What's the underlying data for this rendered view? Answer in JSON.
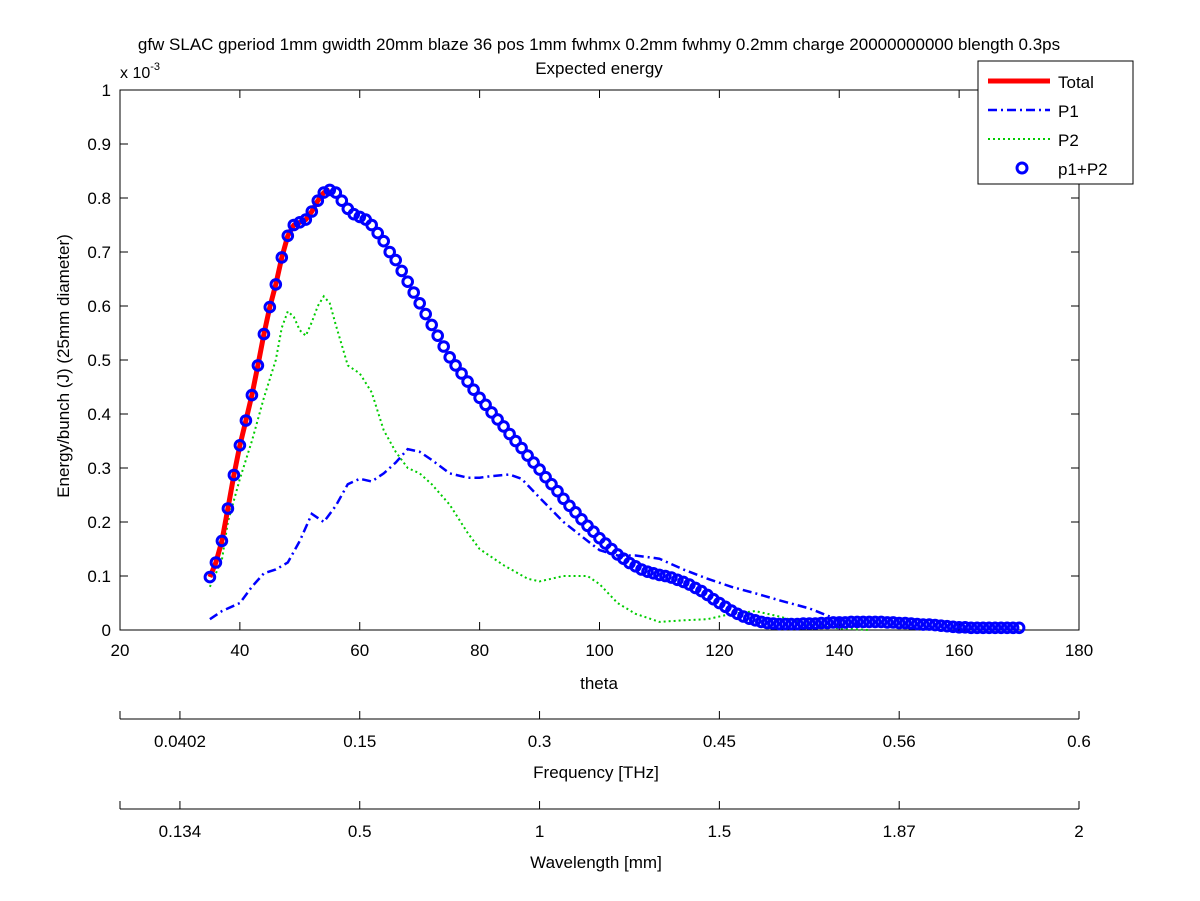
{
  "chart_data": {
    "type": "line",
    "title": "gfw SLAC gperiod 1mm gwidth 20mm blaze 36 pos 1mm fwhmx 0.2mm fwhmy 0.2mm charge 20000000000 blength 0.3ps",
    "subtitle": "Expected energy",
    "xlabel": "theta",
    "ylabel": "Energy/bunch (J) (25mm diameter)",
    "y_multiplier_label": "x 10",
    "y_multiplier_exponent": "-3",
    "xlim": [
      20,
      180
    ],
    "ylim": [
      0,
      1
    ],
    "x_ticks": [
      "20",
      "40",
      "60",
      "80",
      "100",
      "120",
      "140",
      "160",
      "180"
    ],
    "y_ticks": [
      "0",
      "0.1",
      "0.2",
      "0.3",
      "0.4",
      "0.5",
      "0.6",
      "0.7",
      "0.8",
      "0.9",
      "1"
    ],
    "grid": false,
    "legend_position": "top-right",
    "series": [
      {
        "name": "Total",
        "color": "#ff0000",
        "style": "solid",
        "x": [
          35,
          36,
          37,
          38,
          39,
          40,
          41,
          42,
          43,
          44,
          45,
          46,
          47,
          48,
          49,
          50,
          51,
          52,
          53,
          54,
          55
        ],
        "values": [
          0.098,
          0.125,
          0.165,
          0.225,
          0.287,
          0.342,
          0.388,
          0.435,
          0.49,
          0.548,
          0.598,
          0.64,
          0.69,
          0.73,
          0.75,
          0.755,
          0.76,
          0.775,
          0.795,
          0.81,
          0.815
        ]
      },
      {
        "name": "P1",
        "color": "#0000ff",
        "style": "dashdot",
        "x": [
          35,
          37,
          40,
          42,
          44,
          46,
          48,
          50,
          52,
          54,
          56,
          58,
          60,
          62,
          64,
          66,
          68,
          70,
          72,
          75,
          78,
          80,
          82,
          85,
          87,
          90,
          94,
          98,
          100,
          103,
          106,
          110,
          114,
          118,
          122,
          126,
          130,
          135,
          140,
          145
        ],
        "values": [
          0.02,
          0.035,
          0.05,
          0.08,
          0.105,
          0.112,
          0.125,
          0.165,
          0.215,
          0.2,
          0.23,
          0.27,
          0.28,
          0.275,
          0.29,
          0.31,
          0.335,
          0.33,
          0.315,
          0.29,
          0.282,
          0.282,
          0.285,
          0.288,
          0.28,
          0.245,
          0.2,
          0.165,
          0.148,
          0.138,
          0.138,
          0.132,
          0.112,
          0.095,
          0.08,
          0.068,
          0.055,
          0.04,
          0.018,
          0.005
        ]
      },
      {
        "name": "P2",
        "color": "#00cc00",
        "style": "dotted",
        "x": [
          35,
          37,
          38,
          40,
          42,
          44,
          46,
          47,
          48,
          49,
          50,
          51,
          52,
          53,
          54,
          55,
          56,
          58,
          60,
          62,
          64,
          66,
          68,
          70,
          72,
          75,
          78,
          80,
          84,
          88,
          90,
          94,
          98,
          100,
          103,
          106,
          110,
          114,
          118,
          122,
          126,
          130,
          135,
          140,
          145
        ],
        "values": [
          0.08,
          0.13,
          0.2,
          0.28,
          0.35,
          0.43,
          0.5,
          0.56,
          0.59,
          0.58,
          0.555,
          0.545,
          0.57,
          0.6,
          0.618,
          0.605,
          0.565,
          0.49,
          0.475,
          0.44,
          0.37,
          0.33,
          0.3,
          0.29,
          0.27,
          0.232,
          0.18,
          0.15,
          0.12,
          0.095,
          0.09,
          0.1,
          0.1,
          0.085,
          0.05,
          0.03,
          0.015,
          0.018,
          0.02,
          0.03,
          0.035,
          0.025,
          0.01,
          0.003,
          0.0
        ]
      },
      {
        "name": "p1+P2",
        "color": "#0000ff",
        "style": "circle-markers",
        "x": [
          35,
          36,
          37,
          38,
          39,
          40,
          41,
          42,
          43,
          44,
          45,
          46,
          47,
          48,
          49,
          50,
          51,
          52,
          53,
          54,
          55,
          56,
          57,
          58,
          59,
          60,
          61,
          62,
          63,
          64,
          65,
          66,
          67,
          68,
          69,
          70,
          71,
          72,
          73,
          74,
          75,
          76,
          77,
          78,
          79,
          80,
          81,
          82,
          83,
          84,
          85,
          86,
          87,
          88,
          89,
          90,
          91,
          92,
          93,
          94,
          95,
          96,
          97,
          98,
          99,
          100,
          101,
          102,
          103,
          104,
          105,
          106,
          107,
          108,
          109,
          110,
          111,
          112,
          113,
          114,
          115,
          116,
          117,
          118,
          119,
          120,
          121,
          122,
          123,
          124,
          125,
          126,
          127,
          128,
          129,
          130,
          131,
          132,
          133,
          134,
          135,
          136,
          137,
          138,
          139,
          140,
          141,
          142,
          143,
          144,
          145,
          146,
          147,
          148,
          149,
          150,
          151,
          152,
          153,
          154,
          155,
          156,
          157,
          158,
          159,
          160,
          161,
          162,
          163,
          164,
          165,
          166,
          167,
          168,
          169,
          170
        ],
        "values": [
          0.098,
          0.125,
          0.165,
          0.225,
          0.287,
          0.342,
          0.388,
          0.435,
          0.49,
          0.548,
          0.598,
          0.64,
          0.69,
          0.73,
          0.75,
          0.755,
          0.76,
          0.775,
          0.795,
          0.81,
          0.815,
          0.81,
          0.795,
          0.78,
          0.77,
          0.765,
          0.76,
          0.75,
          0.735,
          0.72,
          0.7,
          0.685,
          0.665,
          0.645,
          0.625,
          0.605,
          0.585,
          0.565,
          0.545,
          0.525,
          0.505,
          0.49,
          0.475,
          0.46,
          0.445,
          0.43,
          0.417,
          0.403,
          0.39,
          0.377,
          0.363,
          0.35,
          0.337,
          0.323,
          0.31,
          0.297,
          0.283,
          0.27,
          0.257,
          0.243,
          0.23,
          0.218,
          0.205,
          0.193,
          0.182,
          0.17,
          0.16,
          0.15,
          0.14,
          0.132,
          0.124,
          0.118,
          0.112,
          0.108,
          0.105,
          0.102,
          0.1,
          0.097,
          0.093,
          0.089,
          0.084,
          0.078,
          0.072,
          0.065,
          0.057,
          0.05,
          0.043,
          0.036,
          0.03,
          0.025,
          0.021,
          0.018,
          0.015,
          0.013,
          0.012,
          0.011,
          0.011,
          0.011,
          0.011,
          0.012,
          0.012,
          0.012,
          0.013,
          0.013,
          0.014,
          0.014,
          0.014,
          0.015,
          0.015,
          0.015,
          0.015,
          0.015,
          0.015,
          0.014,
          0.014,
          0.013,
          0.013,
          0.012,
          0.011,
          0.01,
          0.01,
          0.009,
          0.008,
          0.007,
          0.006,
          0.005,
          0.005,
          0.004,
          0.004,
          0.004,
          0.004,
          0.004,
          0.004,
          0.004,
          0.004,
          0.004
        ]
      }
    ],
    "secondary_axes": [
      {
        "label": "Frequency [THz]",
        "ticks": [
          "0.0402",
          "0.15",
          "0.3",
          "0.45",
          "0.56",
          "0.6"
        ],
        "tick_theta": [
          30,
          60,
          90,
          120,
          150,
          180
        ]
      },
      {
        "label": "Wavelength [mm]",
        "ticks": [
          "0.134",
          "0.5",
          "1",
          "1.5",
          "1.87",
          "2"
        ],
        "tick_theta": [
          30,
          60,
          90,
          120,
          150,
          180
        ]
      }
    ]
  }
}
